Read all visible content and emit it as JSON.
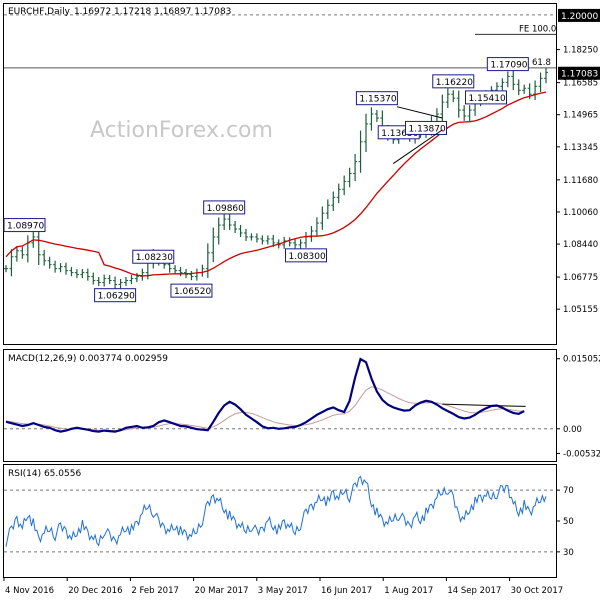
{
  "chart_data": [
    {
      "type": "ohlc",
      "panel": "price",
      "title": "EURCHF,Daily",
      "ohlc_header": "1.16972 1.17218 1.16897 1.17083",
      "watermark": "ActionForex.com",
      "ylim": [
        1.035,
        1.205
      ],
      "yticks": [
        "1.18250",
        "1.16585",
        "1.14965",
        "1.13345",
        "1.11680",
        "1.10060",
        "1.08440",
        "1.06775",
        "1.05155"
      ],
      "last_price_label": "1.17083",
      "top_price_label": "1.20000",
      "level_lines": [
        {
          "label": "FE 100.0",
          "value": 1.1902
        },
        {
          "label": "FE 61.8",
          "value": 1.1733
        }
      ],
      "price_annotations": [
        {
          "label": "1.08970",
          "date_index": 1,
          "value": 1.0897
        },
        {
          "label": "1.06290",
          "date_index": 20,
          "value": 1.0629
        },
        {
          "label": "1.08230",
          "date_index": 27,
          "value": 1.0823
        },
        {
          "label": "1.06520",
          "date_index": 34,
          "value": 1.0652
        },
        {
          "label": "1.09860",
          "date_index": 40,
          "value": 1.0986
        },
        {
          "label": "1.08300",
          "date_index": 55,
          "value": 1.083
        },
        {
          "label": "1.15370",
          "date_index": 68,
          "value": 1.1537
        },
        {
          "label": "1.13650",
          "date_index": 72,
          "value": 1.1365
        },
        {
          "label": "1.13870",
          "date_index": 77,
          "value": 1.1387
        },
        {
          "label": "1.16220",
          "date_index": 82,
          "value": 1.1622
        },
        {
          "label": "1.15410",
          "date_index": 88,
          "value": 1.1541
        },
        {
          "label": "1.17090",
          "date_index": 92,
          "value": 1.1709
        }
      ],
      "sample_every_days": 3,
      "close": [
        1.072,
        1.078,
        1.081,
        1.079,
        1.085,
        1.088,
        1.079,
        1.076,
        1.074,
        1.072,
        1.073,
        1.071,
        1.07,
        1.069,
        1.07,
        1.068,
        1.066,
        1.065,
        1.067,
        1.066,
        1.064,
        1.065,
        1.066,
        1.067,
        1.068,
        1.07,
        1.075,
        1.079,
        1.076,
        1.074,
        1.072,
        1.071,
        1.07,
        1.069,
        1.068,
        1.07,
        1.072,
        1.08,
        1.088,
        1.094,
        1.097,
        1.094,
        1.092,
        1.09,
        1.088,
        1.088,
        1.087,
        1.086,
        1.087,
        1.085,
        1.084,
        1.086,
        1.085,
        1.084,
        1.085,
        1.088,
        1.091,
        1.095,
        1.1,
        1.104,
        1.108,
        1.112,
        1.116,
        1.12,
        1.126,
        1.136,
        1.145,
        1.15,
        1.148,
        1.142,
        1.139,
        1.137,
        1.139,
        1.14,
        1.138,
        1.142,
        1.14,
        1.142,
        1.146,
        1.15,
        1.156,
        1.16,
        1.158,
        1.152,
        1.149,
        1.152,
        1.156,
        1.158,
        1.16,
        1.162,
        1.164,
        1.166,
        1.169,
        1.165,
        1.162,
        1.163,
        1.16,
        1.164,
        1.168,
        1.171
      ]
    },
    {
      "type": "line",
      "panel": "macd",
      "title": "MACD(12,26,9) 0.003774 0.002959",
      "ylim": [
        -0.0065,
        0.0165
      ],
      "yticks": [
        "0.015052",
        "0.00",
        "-0.005321"
      ],
      "zero_line": 0,
      "reference_lines": [
        {
          "value": 0.0053,
          "y_at_end": 0.0048,
          "from_index": 80,
          "to_index": 96
        }
      ],
      "series": [
        {
          "role": "macd",
          "values": [
            0.0015,
            0.0012,
            0.0009,
            0.0006,
            0.0008,
            0.0012,
            0.0008,
            0.0004,
            0.0002,
            -0.0003,
            -0.0006,
            -0.0004,
            0.0,
            0.0002,
            0.0,
            -0.0002,
            -0.0005,
            -0.0006,
            -0.0004,
            -0.0005,
            -0.0006,
            -0.0003,
            0.0002,
            0.0004,
            0.0006,
            0.0002,
            0.0003,
            0.0006,
            0.0014,
            0.0018,
            0.0014,
            0.001,
            0.0006,
            0.0005,
            0.0002,
            -0.0001,
            -0.0002,
            -0.0003,
            0.0015,
            0.0034,
            0.005,
            0.0058,
            0.0052,
            0.0042,
            0.003,
            0.0022,
            0.0014,
            0.0005,
            0.0001,
            0.0002,
            0.0,
            0.0001,
            0.0003,
            0.0004,
            0.0008,
            0.0014,
            0.0022,
            0.003,
            0.0036,
            0.0042,
            0.0046,
            0.004,
            0.0036,
            0.006,
            0.011,
            0.015,
            0.0143,
            0.0108,
            0.008,
            0.0062,
            0.0052,
            0.0046,
            0.0042,
            0.0039,
            0.004,
            0.005,
            0.0056,
            0.006,
            0.0058,
            0.0052,
            0.0044,
            0.0038,
            0.0032,
            0.0025,
            0.0022,
            0.0024,
            0.003,
            0.0038,
            0.0044,
            0.0049,
            0.005,
            0.0045,
            0.0039,
            0.0034,
            0.0032,
            0.0038
          ]
        },
        {
          "role": "signal",
          "values": [
            0.0017,
            0.0015,
            0.0013,
            0.0011,
            0.001,
            0.0011,
            0.001,
            0.0008,
            0.0006,
            0.0003,
            0.0001,
            -0.0001,
            -0.0001,
            0.0,
            0.0,
            -0.0001,
            -0.0002,
            -0.0003,
            -0.0003,
            -0.0004,
            -0.0004,
            -0.0004,
            -0.0002,
            0.0,
            0.0002,
            0.0002,
            0.0002,
            0.0003,
            0.0006,
            0.0009,
            0.0011,
            0.0011,
            0.001,
            0.0009,
            0.0007,
            0.0005,
            0.0003,
            0.0001,
            0.0004,
            0.001,
            0.0018,
            0.0026,
            0.0032,
            0.0035,
            0.0035,
            0.0033,
            0.0029,
            0.0024,
            0.0019,
            0.0015,
            0.0012,
            0.001,
            0.0008,
            0.0007,
            0.0007,
            0.0009,
            0.0011,
            0.0015,
            0.0019,
            0.0024,
            0.0029,
            0.0031,
            0.0032,
            0.0038,
            0.005,
            0.0067,
            0.0083,
            0.009,
            0.0088,
            0.0083,
            0.0077,
            0.0071,
            0.0065,
            0.006,
            0.0056,
            0.0055,
            0.0055,
            0.0056,
            0.0056,
            0.0056,
            0.0053,
            0.005,
            0.0046,
            0.0042,
            0.0038,
            0.0035,
            0.0034,
            0.0035,
            0.0037,
            0.004,
            0.0042,
            0.0043,
            0.0042,
            0.004,
            0.0038,
            0.0038
          ]
        }
      ]
    },
    {
      "type": "line",
      "panel": "rsi",
      "title": "RSI(14) 65.0556",
      "ylim": [
        15,
        85
      ],
      "yticks": [
        "70",
        "50",
        "30"
      ],
      "reference_levels": [
        70,
        30
      ],
      "series": [
        {
          "role": "rsi",
          "values": [
            37,
            44,
            52,
            46,
            55,
            48,
            38,
            42,
            45,
            41,
            46,
            44,
            39,
            43,
            47,
            42,
            38,
            36,
            44,
            40,
            37,
            42,
            46,
            44,
            48,
            55,
            60,
            56,
            49,
            46,
            44,
            47,
            43,
            41,
            40,
            44,
            51,
            60,
            66,
            64,
            58,
            53,
            49,
            46,
            44,
            47,
            42,
            45,
            51,
            47,
            44,
            49,
            46,
            43,
            48,
            55,
            60,
            63,
            66,
            62,
            68,
            64,
            70,
            66,
            72,
            78,
            76,
            62,
            55,
            50,
            48,
            52,
            54,
            50,
            47,
            54,
            51,
            55,
            59,
            65,
            69,
            71,
            64,
            54,
            52,
            58,
            62,
            65,
            66,
            66,
            68,
            70,
            72,
            62,
            56,
            60,
            55,
            60,
            64,
            66
          ]
        }
      ]
    }
  ],
  "x_axis": {
    "tick_labels": [
      "4 Nov 2016",
      "20 Dec 2016",
      "2 Feb 2017",
      "20 Mar 2017",
      "3 May 2017",
      "16 Jun 2017",
      "1 Aug 2017",
      "14 Sep 2017",
      "30 Oct 2017"
    ]
  },
  "colors": {
    "price_bars": "#1b5e3b",
    "moving_average": "#cc0000",
    "macd_line": "#000080",
    "signal_line": "#c89a9a",
    "rsi_line": "#1e6fd9",
    "annotation_border": "#1b1b8a",
    "grid": "#777777",
    "last_price_bg": "#000000"
  }
}
